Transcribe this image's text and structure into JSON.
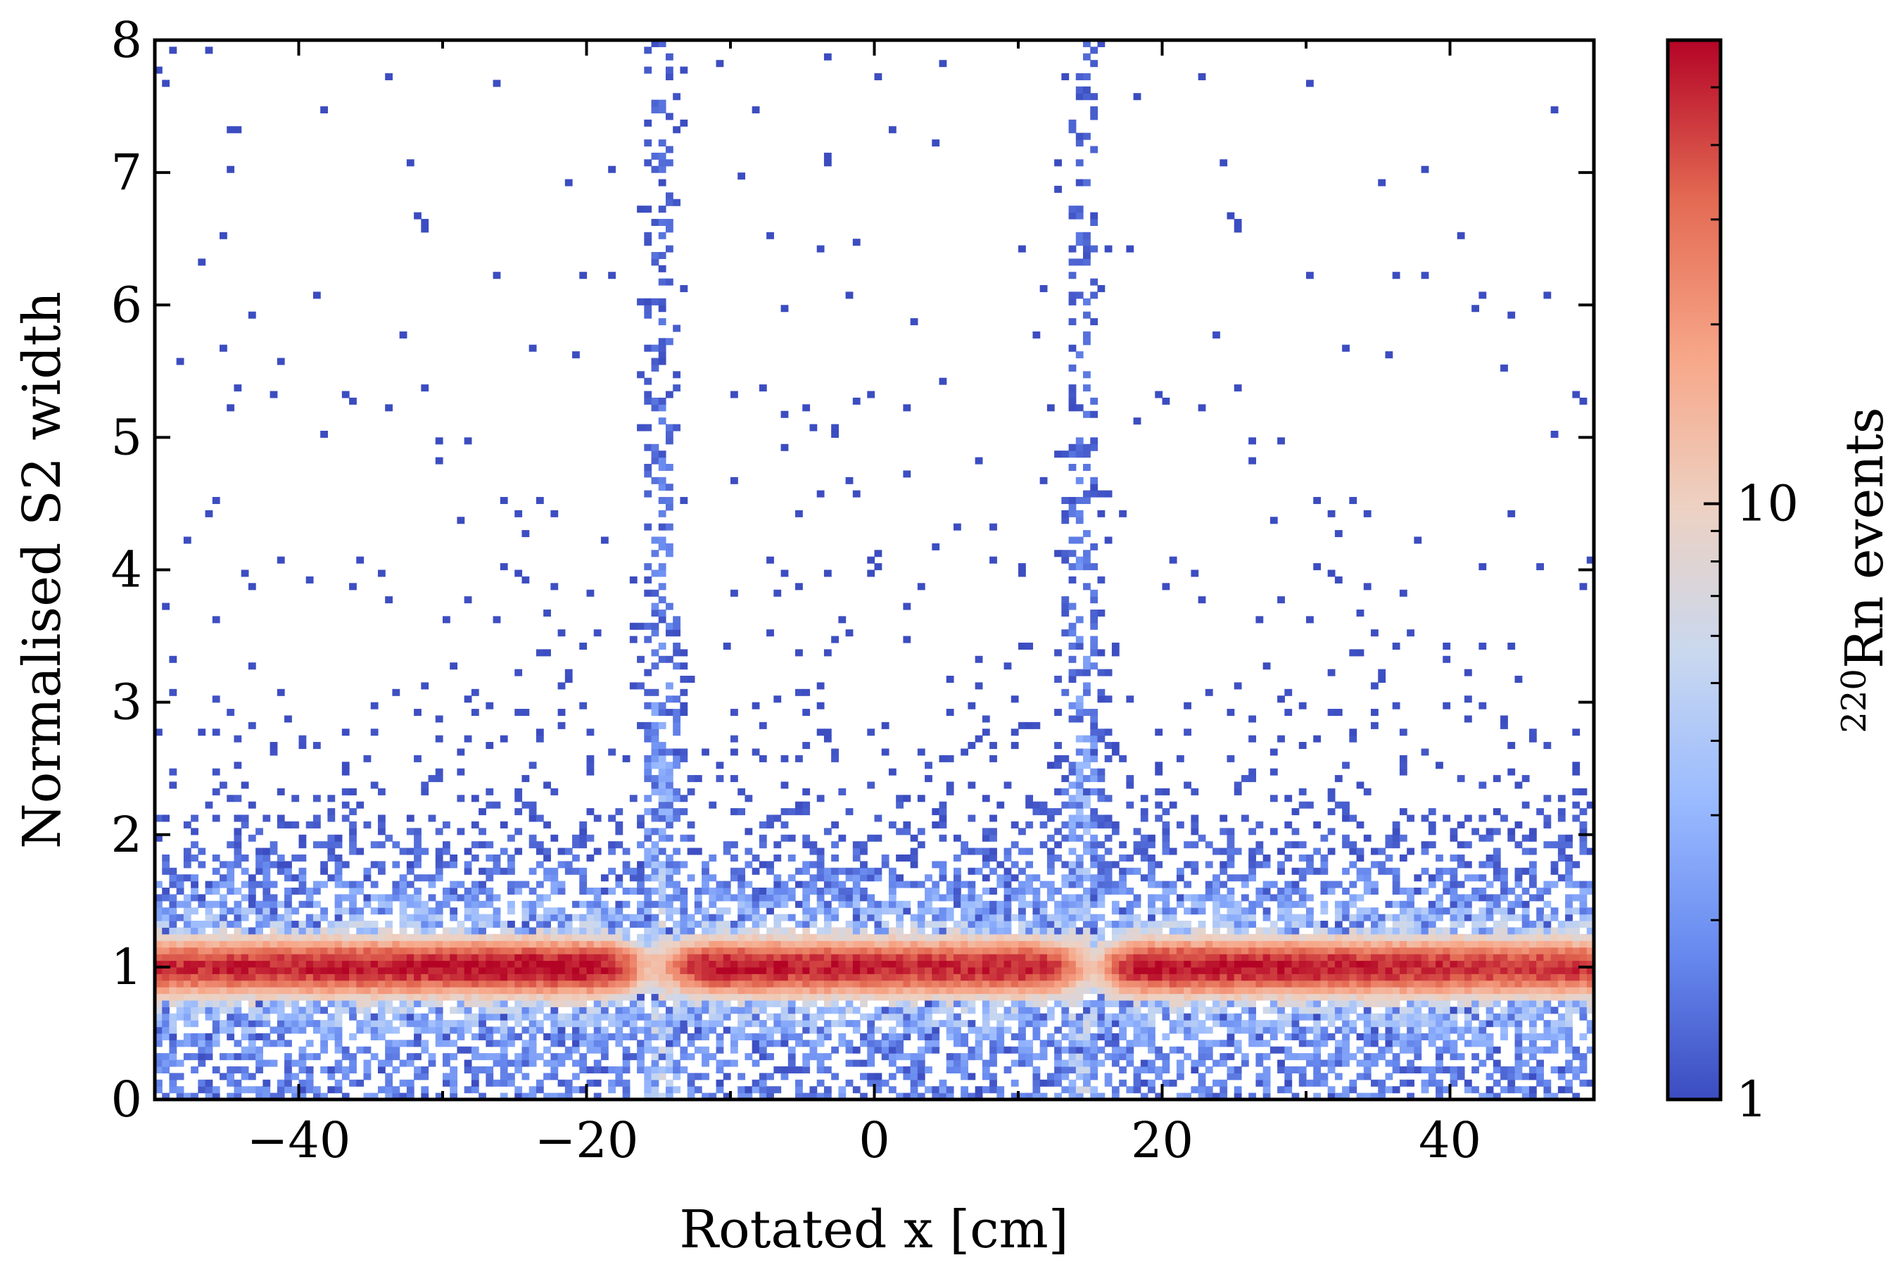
{
  "chart_data": {
    "type": "heatmap",
    "xlabel": "Rotated x [cm]",
    "ylabel": "Normalised S2 width",
    "xlim": [
      -50,
      50
    ],
    "ylim": [
      0,
      8
    ],
    "x_ticks": [
      -40,
      -20,
      0,
      20,
      40
    ],
    "x_tick_labels": [
      "−40",
      "−20",
      "0",
      "20",
      "40"
    ],
    "y_ticks": [
      0,
      1,
      2,
      3,
      4,
      5,
      6,
      7,
      8
    ],
    "y_tick_labels": [
      "0",
      "1",
      "2",
      "3",
      "4",
      "5",
      "6",
      "7",
      "8"
    ],
    "grid": false,
    "colorbar": {
      "label_sup": "220",
      "label_main": "Rn events",
      "scale": "log",
      "range": [
        1,
        60
      ],
      "ticks": [
        1,
        10
      ],
      "tick_labels": [
        "1",
        "10"
      ],
      "colormap": "coolwarm",
      "colors": [
        "#3b4cc0",
        "#688aef",
        "#99baff",
        "#c9d8ef",
        "#edd1c2",
        "#f7a789",
        "#e36a53",
        "#b40426"
      ]
    },
    "bins": {
      "x_count": 200,
      "y_count": 160,
      "x_range": [
        -50,
        50
      ],
      "y_range": [
        0,
        8
      ]
    },
    "features": {
      "main_band": {
        "y_center": 1.0,
        "y_sigma": 0.11,
        "peak_counts": 55
      },
      "vertical_streaks_x": [
        -14.8,
        14.5
      ],
      "streak_extent_y_max": 8.0,
      "gap_regions_x": [
        [
          -17.5,
          -13.0
        ],
        [
          13.0,
          17.0
        ]
      ]
    }
  }
}
